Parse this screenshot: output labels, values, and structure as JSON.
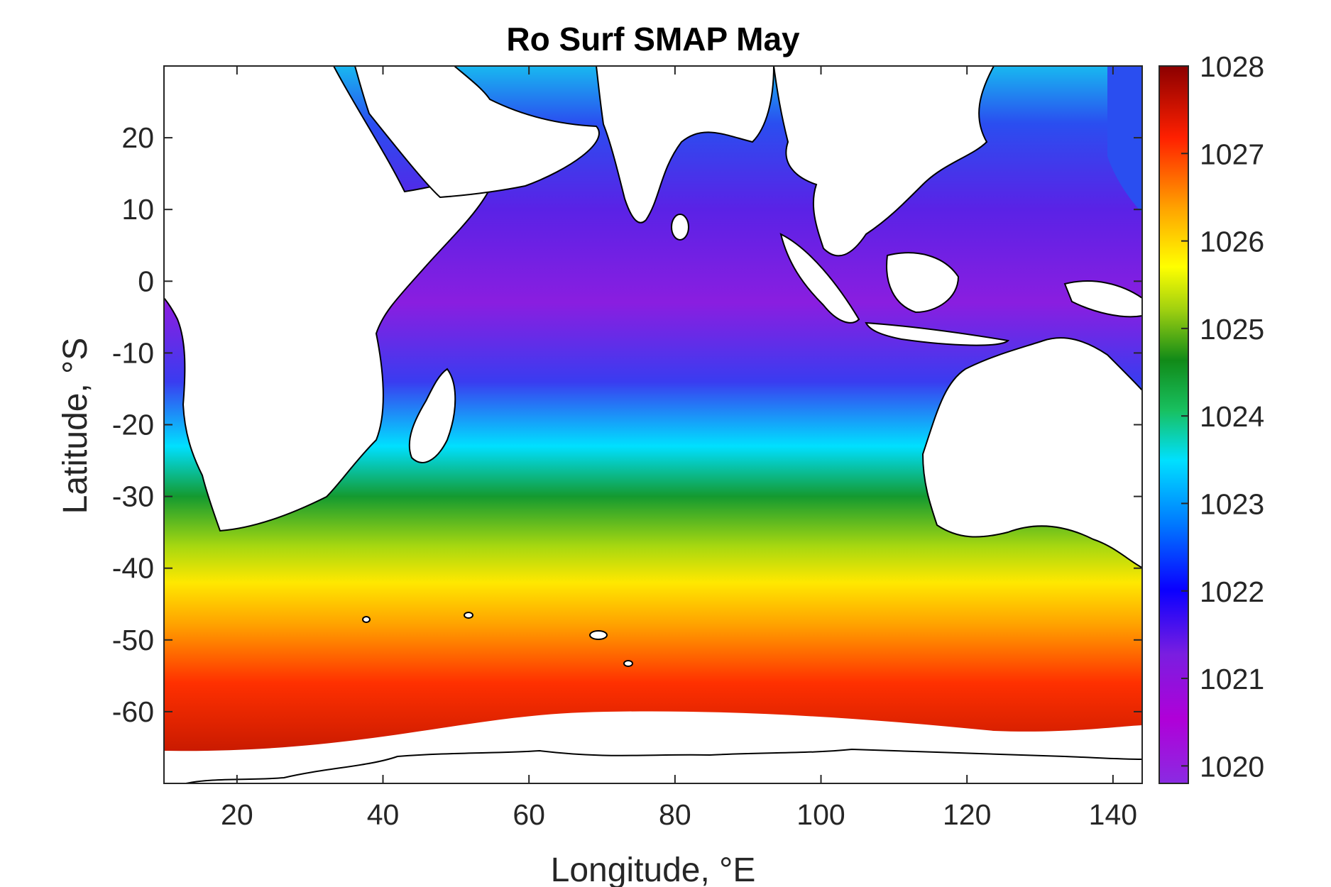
{
  "chart_data": {
    "type": "heatmap",
    "title": "Ro Surf SMAP May",
    "xlabel": "Longitude, °E",
    "ylabel": "Latitude, °S",
    "xlim": [
      10,
      144
    ],
    "ylim": [
      -70,
      30
    ],
    "x_ticks": [
      20,
      40,
      60,
      80,
      100,
      120,
      140
    ],
    "y_ticks": [
      20,
      10,
      0,
      -10,
      -20,
      -30,
      -40,
      -50,
      -60
    ],
    "colorbar": {
      "min": 1019.8,
      "max": 1028,
      "ticks": [
        1020,
        1021,
        1022,
        1023,
        1024,
        1025,
        1026,
        1027,
        1028
      ],
      "colormap": [
        "#8a2be2",
        "#b000d8",
        "#7a1ee0",
        "#0a00ff",
        "#0077ff",
        "#00e0ff",
        "#18c060",
        "#118a18",
        "#9fd010",
        "#ffff00",
        "#ffa500",
        "#ff2000",
        "#8b0000"
      ]
    },
    "grid": false,
    "field_description_by_latitude": [
      {
        "lat": 25,
        "value": 1022.6
      },
      {
        "lat": 15,
        "value": 1021.9
      },
      {
        "lat": 5,
        "value": 1021.3
      },
      {
        "lat": -5,
        "value": 1021.0
      },
      {
        "lat": -15,
        "value": 1021.7
      },
      {
        "lat": -22,
        "value": 1023.0
      },
      {
        "lat": -28,
        "value": 1024.2
      },
      {
        "lat": -34,
        "value": 1025.2
      },
      {
        "lat": -40,
        "value": 1026.0
      },
      {
        "lat": -46,
        "value": 1026.8
      },
      {
        "lat": -54,
        "value": 1027.3
      },
      {
        "lat": -62,
        "value": 1027.6
      }
    ]
  }
}
